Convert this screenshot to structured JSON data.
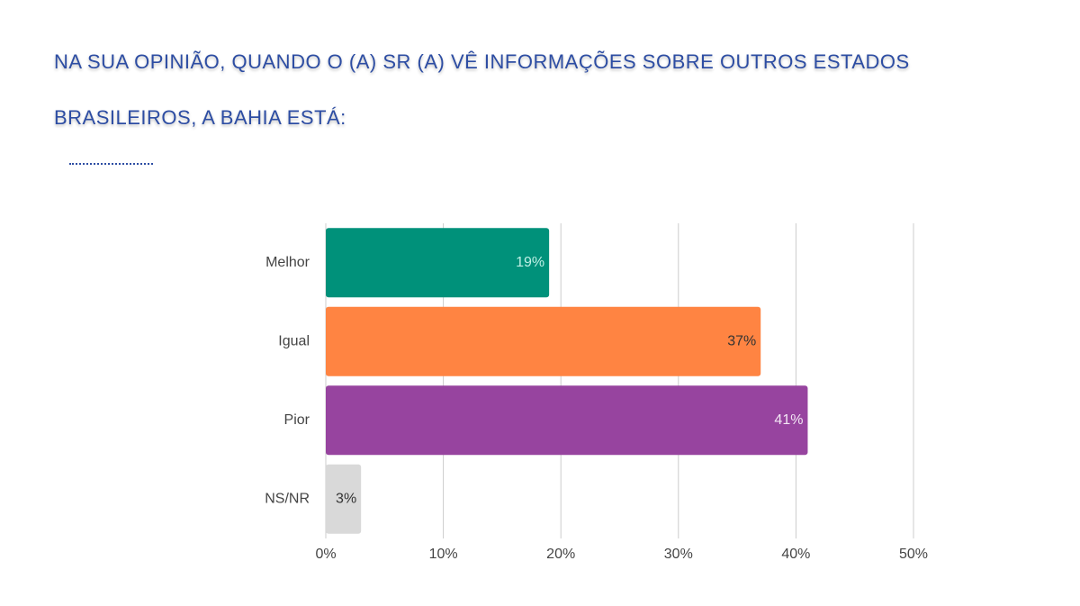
{
  "chart_data": {
    "type": "hbar",
    "title": "NA SUA OPINIÃO, QUANDO O (A) SR (A) VÊ INFORMAÇÕES SOBRE OUTROS ESTADOS BRASILEIROS, A BAHIA ESTÁ:",
    "categories": [
      "Melhor",
      "Igual",
      "Pior",
      "NS/NR"
    ],
    "values": [
      19,
      37,
      41,
      3
    ],
    "value_labels": [
      "19%",
      "37%",
      "41%",
      "3%"
    ],
    "colors": [
      "#00917a",
      "#ff8442",
      "#97449f",
      "#d9d9d9"
    ],
    "value_label_colors": [
      "#bff0e6",
      "#333333",
      "#f2e6f4",
      "#333333"
    ],
    "xlim": [
      0,
      50
    ],
    "xticks": [
      {
        "value": 0,
        "label": "0%"
      },
      {
        "value": 10,
        "label": "10%"
      },
      {
        "value": 20,
        "label": "20%"
      },
      {
        "value": 30,
        "label": "30%"
      },
      {
        "value": 40,
        "label": "40%"
      },
      {
        "value": 50,
        "label": "50%"
      }
    ],
    "grid": true
  }
}
